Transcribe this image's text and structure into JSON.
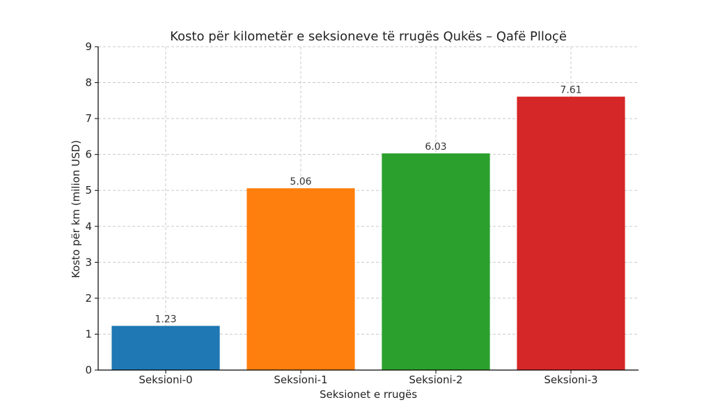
{
  "chart_data": {
    "type": "bar",
    "title": "Kosto për kilometër e seksioneve të rrugës Qukës – Qafë Plloçë",
    "xlabel": "Seksionet e rrugës",
    "ylabel": "Kosto për km (milion USD)",
    "categories": [
      "Seksioni-0",
      "Seksioni-1",
      "Seksioni-2",
      "Seksioni-3"
    ],
    "values": [
      1.23,
      5.06,
      6.03,
      7.61
    ],
    "value_labels": [
      "1.23",
      "5.06",
      "6.03",
      "7.61"
    ],
    "colors": [
      "#1f77b4",
      "#ff7f0e",
      "#2ca02c",
      "#d62728"
    ],
    "ylim": [
      0,
      9
    ],
    "yticks": [
      0,
      1,
      2,
      3,
      4,
      5,
      6,
      7,
      8,
      9
    ],
    "grid": true
  }
}
